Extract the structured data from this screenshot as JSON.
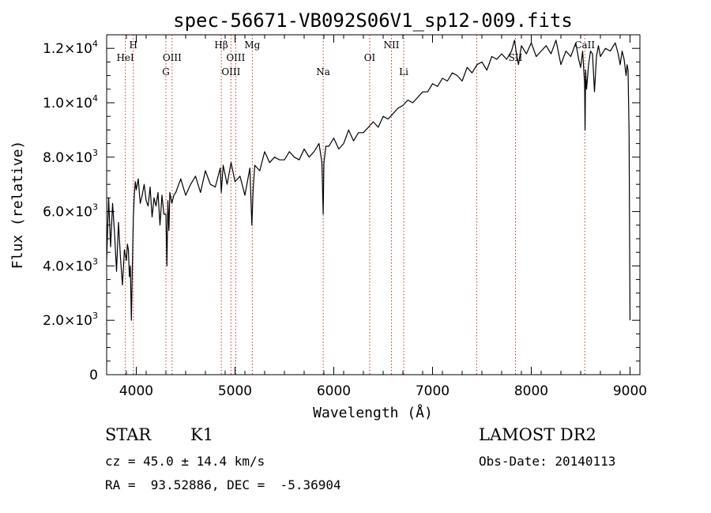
{
  "chart_data": {
    "type": "line",
    "title": "spec-56671-VB092S06V1_sp12-009.fits",
    "xlabel": "Wavelength (Å)",
    "ylabel": "Flux (relative)",
    "xlim": [
      3700,
      9100
    ],
    "ylim": [
      0,
      12500
    ],
    "x_ticks": [
      4000,
      5000,
      6000,
      7000,
      8000,
      9000
    ],
    "y_ticks": [
      {
        "value": 0,
        "mantissa": "0",
        "sup": ""
      },
      {
        "value": 2000,
        "mantissa": "2.0×10",
        "sup": "3"
      },
      {
        "value": 4000,
        "mantissa": "4.0×10",
        "sup": "3"
      },
      {
        "value": 6000,
        "mantissa": "6.0×10",
        "sup": "3"
      },
      {
        "value": 8000,
        "mantissa": "8.0×10",
        "sup": "3"
      },
      {
        "value": 10000,
        "mantissa": "1.0×10",
        "sup": "4"
      },
      {
        "value": 12000,
        "mantissa": "1.2×10",
        "sup": "4"
      }
    ],
    "grid": false,
    "line_color": "#000000",
    "marker_color": "#c0392b",
    "series": [
      {
        "x": [
          3700,
          3720,
          3740,
          3760,
          3780,
          3800,
          3820,
          3840,
          3860,
          3880,
          3900,
          3910,
          3920,
          3930,
          3940,
          3950,
          3960,
          3970,
          3980,
          3990,
          4000,
          4020,
          4040,
          4060,
          4080,
          4100,
          4120,
          4140,
          4160,
          4180,
          4200,
          4220,
          4240,
          4260,
          4280,
          4300,
          4310,
          4320,
          4330,
          4340,
          4360,
          4380,
          4400,
          4450,
          4500,
          4550,
          4600,
          4650,
          4700,
          4750,
          4800,
          4850,
          4861,
          4880,
          4920,
          4960,
          5000,
          5050,
          5100,
          5150,
          5170,
          5183,
          5200,
          5250,
          5300,
          5350,
          5400,
          5450,
          5500,
          5550,
          5600,
          5650,
          5700,
          5750,
          5800,
          5850,
          5880,
          5893,
          5900,
          5920,
          5950,
          6000,
          6050,
          6100,
          6150,
          6200,
          6250,
          6300,
          6350,
          6400,
          6450,
          6500,
          6550,
          6600,
          6650,
          6700,
          6750,
          6800,
          6850,
          6900,
          6950,
          7000,
          7050,
          7100,
          7150,
          7200,
          7250,
          7300,
          7350,
          7400,
          7450,
          7500,
          7550,
          7600,
          7650,
          7700,
          7750,
          7800,
          7830,
          7850,
          7870,
          7900,
          7950,
          8000,
          8050,
          8100,
          8150,
          8200,
          8250,
          8300,
          8350,
          8400,
          8450,
          8480,
          8500,
          8520,
          8540,
          8545,
          8550,
          8560,
          8580,
          8600,
          8620,
          8640,
          8660,
          8680,
          8700,
          8750,
          8800,
          8850,
          8880,
          8900,
          8920,
          8940,
          8960,
          8970,
          8980,
          8990,
          9000
        ],
        "y": [
          4200,
          6500,
          4700,
          6300,
          5200,
          3800,
          5600,
          4300,
          3300,
          4600,
          4200,
          4800,
          4600,
          3600,
          4000,
          2000,
          3900,
          5800,
          6600,
          7100,
          6800,
          7200,
          6300,
          6600,
          7000,
          6400,
          6200,
          6900,
          5800,
          6500,
          6200,
          6700,
          5500,
          6600,
          5900,
          5900,
          4000,
          6400,
          5300,
          6700,
          6300,
          6600,
          6700,
          7200,
          6600,
          7000,
          7300,
          6700,
          7500,
          7000,
          6900,
          7600,
          6700,
          7700,
          7000,
          7800,
          7100,
          7300,
          6600,
          7600,
          5500,
          6800,
          7700,
          7500,
          8200,
          7800,
          8000,
          7900,
          7900,
          8200,
          8000,
          7900,
          8300,
          8000,
          8200,
          8500,
          7800,
          5900,
          7800,
          8400,
          8400,
          8700,
          8300,
          8500,
          9000,
          8600,
          8900,
          8900,
          9100,
          9300,
          9100,
          9500,
          9400,
          9600,
          9800,
          9900,
          10100,
          10000,
          10200,
          10400,
          10400,
          10700,
          10600,
          10900,
          10800,
          11100,
          11000,
          10800,
          11300,
          11100,
          11400,
          11500,
          11200,
          11700,
          11600,
          11800,
          11600,
          11900,
          12300,
          11800,
          11400,
          12100,
          11800,
          12200,
          11700,
          11900,
          12100,
          11800,
          12300,
          11400,
          11900,
          11700,
          12200,
          11600,
          11300,
          11900,
          10700,
          9000,
          11200,
          10500,
          11400,
          11900,
          11800,
          10400,
          11700,
          12100,
          11700,
          12000,
          11900,
          12200,
          11800,
          11400,
          11900,
          11600,
          11000,
          11400,
          11200,
          8900,
          2000
        ]
      }
    ],
    "line_markers": [
      {
        "wavelength": 3889,
        "label": "HeI",
        "row": 2
      },
      {
        "wavelength": 3970,
        "label": "H",
        "row": 1
      },
      {
        "wavelength": 4300,
        "label": "G",
        "row": 3
      },
      {
        "wavelength": 4363,
        "label": "OIII",
        "row": 2
      },
      {
        "wavelength": 4861,
        "label": "Hβ",
        "row": 1
      },
      {
        "wavelength": 4959,
        "label": "OIII",
        "row": 3
      },
      {
        "wavelength": 5007,
        "label": "OIII",
        "row": 2
      },
      {
        "wavelength": 5175,
        "label": "Mg",
        "row": 1
      },
      {
        "wavelength": 5893,
        "label": "Na",
        "row": 3
      },
      {
        "wavelength": 6364,
        "label": "OI",
        "row": 2
      },
      {
        "wavelength": 6584,
        "label": "NII",
        "row": 1
      },
      {
        "wavelength": 6708,
        "label": "Li",
        "row": 3
      },
      {
        "wavelength": 7447,
        "label": "",
        "row": 0
      },
      {
        "wavelength": 7840,
        "label": "SII",
        "row": 2
      },
      {
        "wavelength": 8542,
        "label": "CaII",
        "row": 1
      }
    ]
  },
  "info": {
    "object_type": "STAR",
    "subclass": "K1",
    "survey": "LAMOST DR2",
    "redshift": "cz = 45.0 ± 14.4 km/s",
    "obs_date": "Obs-Date: 20140113",
    "coords": "RA =  93.52886, DEC =  -5.36904"
  }
}
